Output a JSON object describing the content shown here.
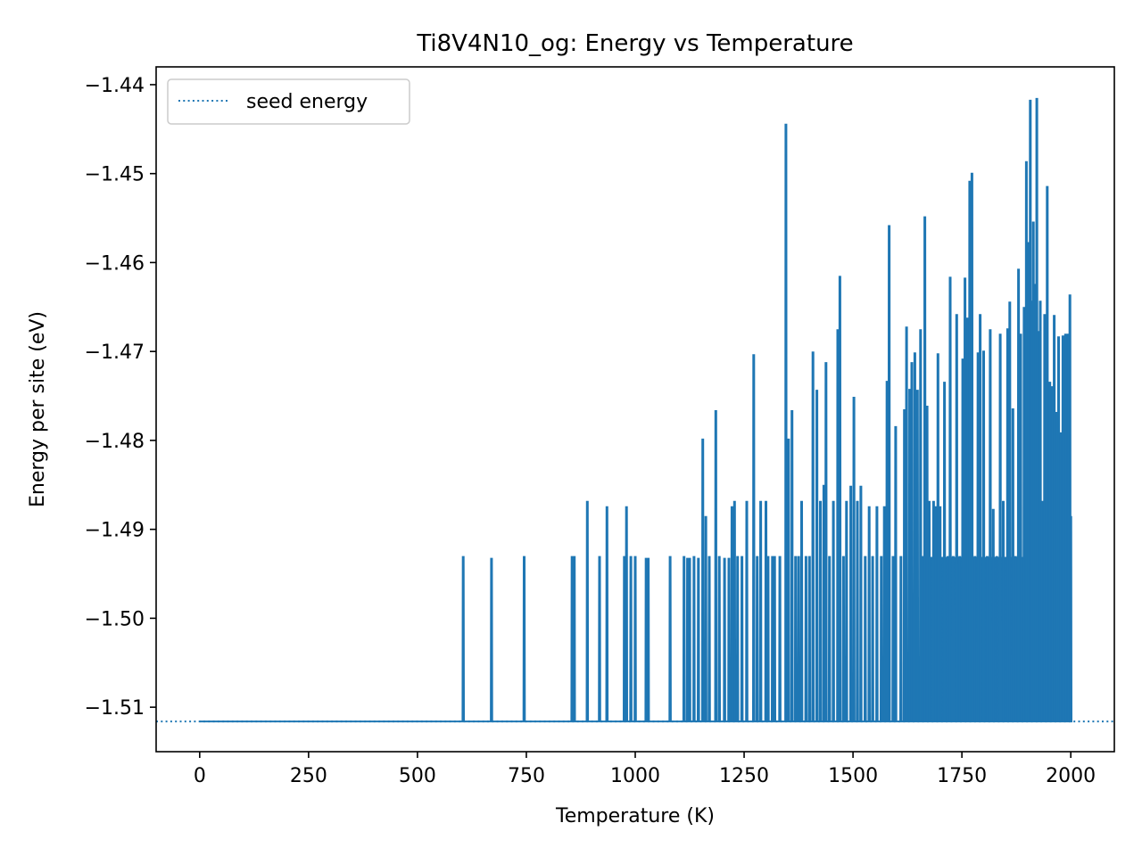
{
  "chart_data": {
    "type": "line",
    "title": "Ti8V4N10_og: Energy vs Temperature",
    "xlabel": "Temperature (K)",
    "ylabel": "Energy per site (eV)",
    "xlim": [
      -100,
      2100
    ],
    "ylim": [
      -1.515,
      -1.438
    ],
    "x_ticks": [
      0,
      250,
      500,
      750,
      1000,
      1250,
      1500,
      1750,
      2000
    ],
    "y_ticks": [
      -1.51,
      -1.5,
      -1.49,
      -1.48,
      -1.47,
      -1.46,
      -1.45,
      -1.44
    ],
    "x_tick_labels": [
      "0",
      "250",
      "500",
      "750",
      "1000",
      "1250",
      "1500",
      "1750",
      "2000"
    ],
    "y_tick_labels": [
      "−1.51",
      "−1.50",
      "−1.49",
      "−1.48",
      "−1.47",
      "−1.46",
      "−1.45",
      "−1.44"
    ],
    "grid": false,
    "legend_position": "top-left",
    "colors": {
      "series": "#1f77b4"
    },
    "baseline": -1.5116,
    "seed_energy": -1.5116,
    "series": [
      {
        "name": "seed energy",
        "style": "dotted",
        "y": -1.5116
      },
      {
        "style": "solid",
        "spikes": [
          [
            605,
            -1.4931
          ],
          [
            670,
            -1.4933
          ],
          [
            745,
            -1.4931
          ],
          [
            855,
            -1.4931
          ],
          [
            860,
            -1.4931
          ],
          [
            890,
            -1.4869
          ],
          [
            918,
            -1.4931
          ],
          [
            935,
            -1.4875
          ],
          [
            975,
            -1.4931
          ],
          [
            980,
            -1.4875
          ],
          [
            990,
            -1.4931
          ],
          [
            1000,
            -1.4931
          ],
          [
            1025,
            -1.4933
          ],
          [
            1030,
            -1.4933
          ],
          [
            1080,
            -1.4931
          ],
          [
            1112,
            -1.4931
          ],
          [
            1120,
            -1.4933
          ],
          [
            1125,
            -1.4933
          ],
          [
            1135,
            -1.4931
          ],
          [
            1145,
            -1.4933
          ],
          [
            1155,
            -1.4799
          ],
          [
            1162,
            -1.4886
          ],
          [
            1170,
            -1.4931
          ],
          [
            1185,
            -1.4767
          ],
          [
            1193,
            -1.4931
          ],
          [
            1205,
            -1.4933
          ],
          [
            1215,
            -1.4933
          ],
          [
            1222,
            -1.4875
          ],
          [
            1228,
            -1.4869
          ],
          [
            1235,
            -1.4931
          ],
          [
            1245,
            -1.4931
          ],
          [
            1256,
            -1.4869
          ],
          [
            1272,
            -1.4704
          ],
          [
            1280,
            -1.4931
          ],
          [
            1288,
            -1.4869
          ],
          [
            1300,
            -1.4869
          ],
          [
            1305,
            -1.4931
          ],
          [
            1315,
            -1.4931
          ],
          [
            1320,
            -1.4931
          ],
          [
            1332,
            -1.4931
          ],
          [
            1346,
            -1.4445
          ],
          [
            1352,
            -1.4799
          ],
          [
            1360,
            -1.4767
          ],
          [
            1368,
            -1.4931
          ],
          [
            1375,
            -1.4931
          ],
          [
            1382,
            -1.4869
          ],
          [
            1392,
            -1.4931
          ],
          [
            1400,
            -1.4931
          ],
          [
            1408,
            -1.4701
          ],
          [
            1417,
            -1.4744
          ],
          [
            1425,
            -1.4869
          ],
          [
            1433,
            -1.4851
          ],
          [
            1438,
            -1.4713
          ],
          [
            1446,
            -1.4931
          ],
          [
            1455,
            -1.4869
          ],
          [
            1465,
            -1.4676
          ],
          [
            1470,
            -1.4616
          ],
          [
            1478,
            -1.4931
          ],
          [
            1485,
            -1.4869
          ],
          [
            1495,
            -1.4852
          ],
          [
            1502,
            -1.4752
          ],
          [
            1510,
            -1.4869
          ],
          [
            1518,
            -1.4852
          ],
          [
            1528,
            -1.4931
          ],
          [
            1537,
            -1.4875
          ],
          [
            1545,
            -1.4931
          ],
          [
            1555,
            -1.4875
          ],
          [
            1565,
            -1.4931
          ],
          [
            1572,
            -1.4875
          ],
          [
            1578,
            -1.4734
          ],
          [
            1583,
            -1.4559
          ],
          [
            1592,
            -1.4931
          ],
          [
            1598,
            -1.4785
          ],
          [
            1610,
            -1.4931
          ],
          [
            1618,
            -1.4766
          ],
          [
            1623,
            -1.4673
          ],
          [
            1630,
            -1.4743
          ],
          [
            1635,
            -1.4713
          ],
          [
            1642,
            -1.4702
          ],
          [
            1648,
            -1.4744
          ],
          [
            1655,
            -1.4676
          ],
          [
            1660,
            -1.4931
          ],
          [
            1665,
            -1.4549
          ],
          [
            1670,
            -1.4762
          ],
          [
            1675,
            -1.4869
          ],
          [
            1685,
            -1.4869
          ],
          [
            1690,
            -1.4875
          ],
          [
            1695,
            -1.4703
          ],
          [
            1700,
            -1.4875
          ],
          [
            1710,
            -1.4735
          ],
          [
            1718,
            -1.4931
          ],
          [
            1723,
            -1.4617
          ],
          [
            1730,
            -1.4931
          ],
          [
            1738,
            -1.4659
          ],
          [
            1745,
            -1.4931
          ],
          [
            1752,
            -1.4709
          ],
          [
            1757,
            -1.4618
          ],
          [
            1763,
            -1.4663
          ],
          [
            1768,
            -1.4509
          ],
          [
            1773,
            -1.45
          ],
          [
            1780,
            -1.4931
          ],
          [
            1787,
            -1.4702
          ],
          [
            1792,
            -1.4659
          ],
          [
            1800,
            -1.47
          ],
          [
            1808,
            -1.4931
          ],
          [
            1815,
            -1.4676
          ],
          [
            1822,
            -1.4878
          ],
          [
            1830,
            -1.4931
          ],
          [
            1838,
            -1.4681
          ],
          [
            1845,
            -1.4869
          ],
          [
            1855,
            -1.4675
          ],
          [
            1860,
            -1.4645
          ],
          [
            1867,
            -1.4765
          ],
          [
            1873,
            -1.4931
          ],
          [
            1880,
            -1.4608
          ],
          [
            1885,
            -1.4681
          ],
          [
            1893,
            -1.4651
          ],
          [
            1898,
            -1.4487
          ],
          [
            1903,
            -1.4578
          ],
          [
            1907,
            -1.4418
          ],
          [
            1910,
            -1.4644
          ],
          [
            1914,
            -1.4555
          ],
          [
            1918,
            -1.4625
          ],
          [
            1922,
            -1.4416
          ],
          [
            1926,
            -1.4678
          ],
          [
            1930,
            -1.4644
          ],
          [
            1934,
            -1.4869
          ],
          [
            1940,
            -1.4659
          ],
          [
            1946,
            -1.4515
          ],
          [
            1952,
            -1.4735
          ],
          [
            1957,
            -1.474
          ],
          [
            1962,
            -1.466
          ],
          [
            1968,
            -1.4769
          ],
          [
            1972,
            -1.4684
          ],
          [
            1976,
            -1.4792
          ],
          [
            1982,
            -1.4683
          ],
          [
            1988,
            -1.4681
          ],
          [
            1994,
            -1.4681
          ],
          [
            1998,
            -1.4637
          ],
          [
            2000,
            -1.4886
          ]
        ]
      }
    ],
    "dense_fill_ranges": [
      [
        1660,
        2000
      ]
    ]
  }
}
